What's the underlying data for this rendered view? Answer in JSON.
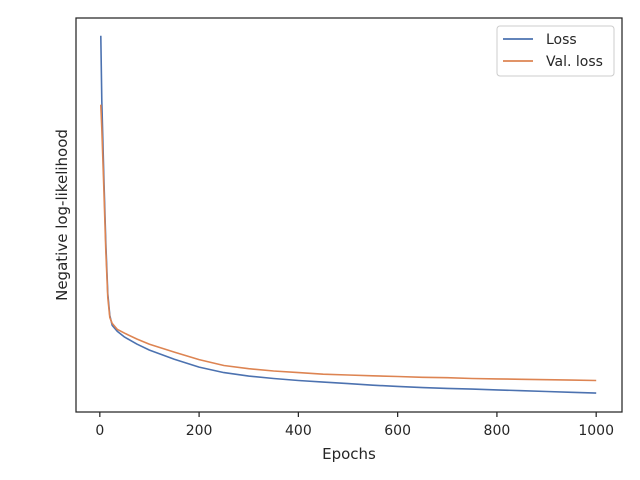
{
  "chart_data": {
    "type": "line",
    "title": "",
    "xlabel": "Epochs",
    "ylabel": "Negative log-likelihood",
    "xlim": [
      -48,
      1052
    ],
    "ylim": [
      0,
      1
    ],
    "x_ticks": [
      0,
      200,
      400,
      600,
      800,
      1000
    ],
    "y_ticks": [],
    "grid": false,
    "legend": "top-right",
    "series": [
      {
        "name": "Loss",
        "color": "#4c72b0",
        "points": [
          [
            2,
            0.955
          ],
          [
            4,
            0.79
          ],
          [
            8,
            0.6
          ],
          [
            12,
            0.43
          ],
          [
            16,
            0.3
          ],
          [
            20,
            0.245
          ],
          [
            25,
            0.22
          ],
          [
            35,
            0.205
          ],
          [
            50,
            0.19
          ],
          [
            75,
            0.172
          ],
          [
            100,
            0.157
          ],
          [
            150,
            0.134
          ],
          [
            200,
            0.114
          ],
          [
            250,
            0.1
          ],
          [
            300,
            0.091
          ],
          [
            350,
            0.085
          ],
          [
            400,
            0.08
          ],
          [
            450,
            0.076
          ],
          [
            500,
            0.072
          ],
          [
            550,
            0.068
          ],
          [
            600,
            0.065
          ],
          [
            650,
            0.062
          ],
          [
            700,
            0.06
          ],
          [
            750,
            0.058
          ],
          [
            800,
            0.056
          ],
          [
            850,
            0.054
          ],
          [
            900,
            0.052
          ],
          [
            950,
            0.05
          ],
          [
            1000,
            0.048
          ]
        ]
      },
      {
        "name": "Val. loss",
        "color": "#dd8452",
        "points": [
          [
            2,
            0.78
          ],
          [
            4,
            0.72
          ],
          [
            8,
            0.57
          ],
          [
            12,
            0.41
          ],
          [
            16,
            0.29
          ],
          [
            20,
            0.24
          ],
          [
            25,
            0.225
          ],
          [
            35,
            0.21
          ],
          [
            50,
            0.2
          ],
          [
            75,
            0.185
          ],
          [
            100,
            0.172
          ],
          [
            150,
            0.152
          ],
          [
            200,
            0.133
          ],
          [
            250,
            0.118
          ],
          [
            300,
            0.11
          ],
          [
            350,
            0.104
          ],
          [
            400,
            0.1
          ],
          [
            450,
            0.096
          ],
          [
            500,
            0.094
          ],
          [
            550,
            0.092
          ],
          [
            600,
            0.09
          ],
          [
            650,
            0.088
          ],
          [
            700,
            0.087
          ],
          [
            750,
            0.085
          ],
          [
            800,
            0.084
          ],
          [
            850,
            0.083
          ],
          [
            900,
            0.082
          ],
          [
            950,
            0.081
          ],
          [
            1000,
            0.08
          ]
        ]
      }
    ]
  }
}
